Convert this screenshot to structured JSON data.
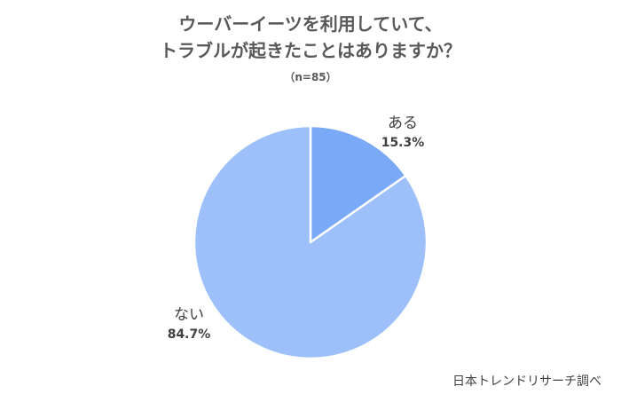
{
  "chart_data": {
    "type": "pie",
    "title": [
      "ウーバーイーツを利用していて、",
      "トラブルが起きたことはありますか？"
    ],
    "subtitle": "（n=85）",
    "slices": [
      {
        "label": "ある",
        "value": 15.3,
        "display": "15.3%",
        "color": "#7aa9f7"
      },
      {
        "label": "ない",
        "value": 84.7,
        "display": "84.7%",
        "color": "#9dc0fb"
      }
    ],
    "start_angle": "12 o'clock",
    "direction": "clockwise"
  },
  "source": "日本トレンドリサーチ調べ"
}
